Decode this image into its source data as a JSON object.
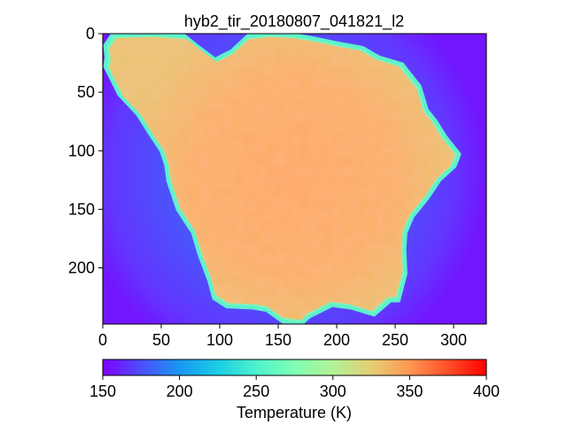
{
  "chart_data": {
    "type": "heatmap",
    "title": "hyb2_tir_20180807_041821_l2",
    "xlim": [
      0,
      328
    ],
    "ylim": [
      0,
      248
    ],
    "y_inverted": true,
    "x_ticks": [
      "0",
      "50",
      "100",
      "150",
      "200",
      "250",
      "300"
    ],
    "y_ticks": [
      "0",
      "50",
      "100",
      "150",
      "200"
    ],
    "colormap": "rainbow",
    "colorbar": {
      "orientation": "horizontal",
      "placement": "bottom",
      "label": "Temperature (K)",
      "range": [
        150,
        400
      ],
      "ticks": [
        "150",
        "200",
        "250",
        "300",
        "350",
        "400"
      ]
    },
    "background_temperature_K": 172,
    "limb_temperature_K": 260,
    "surface_temperature_K": 336,
    "asteroid_outline": [
      [
        96,
        22
      ],
      [
        80,
        10
      ],
      [
        70,
        2
      ],
      [
        40,
        0
      ],
      [
        8,
        1
      ],
      [
        2,
        10
      ],
      [
        3,
        20
      ],
      [
        2,
        28
      ],
      [
        14,
        52
      ],
      [
        30,
        69
      ],
      [
        40,
        85
      ],
      [
        50,
        100
      ],
      [
        54,
        112
      ],
      [
        56,
        126
      ],
      [
        64,
        150
      ],
      [
        77,
        170
      ],
      [
        83,
        190
      ],
      [
        91,
        211
      ],
      [
        95,
        226
      ],
      [
        106,
        233
      ],
      [
        128,
        234
      ],
      [
        140,
        236
      ],
      [
        154,
        246
      ],
      [
        170,
        248
      ],
      [
        176,
        242
      ],
      [
        196,
        232
      ],
      [
        212,
        234
      ],
      [
        232,
        240
      ],
      [
        246,
        228
      ],
      [
        253,
        228
      ],
      [
        259,
        205
      ],
      [
        258,
        184
      ],
      [
        259,
        170
      ],
      [
        265,
        156
      ],
      [
        278,
        140
      ],
      [
        288,
        125
      ],
      [
        301,
        113
      ],
      [
        305,
        103
      ],
      [
        293,
        88
      ],
      [
        285,
        75
      ],
      [
        277,
        65
      ],
      [
        271,
        45
      ],
      [
        256,
        26
      ],
      [
        236,
        20
      ],
      [
        222,
        12
      ],
      [
        200,
        8
      ],
      [
        181,
        4
      ],
      [
        163,
        1
      ],
      [
        143,
        0
      ],
      [
        124,
        2
      ],
      [
        110,
        15
      ]
    ]
  }
}
